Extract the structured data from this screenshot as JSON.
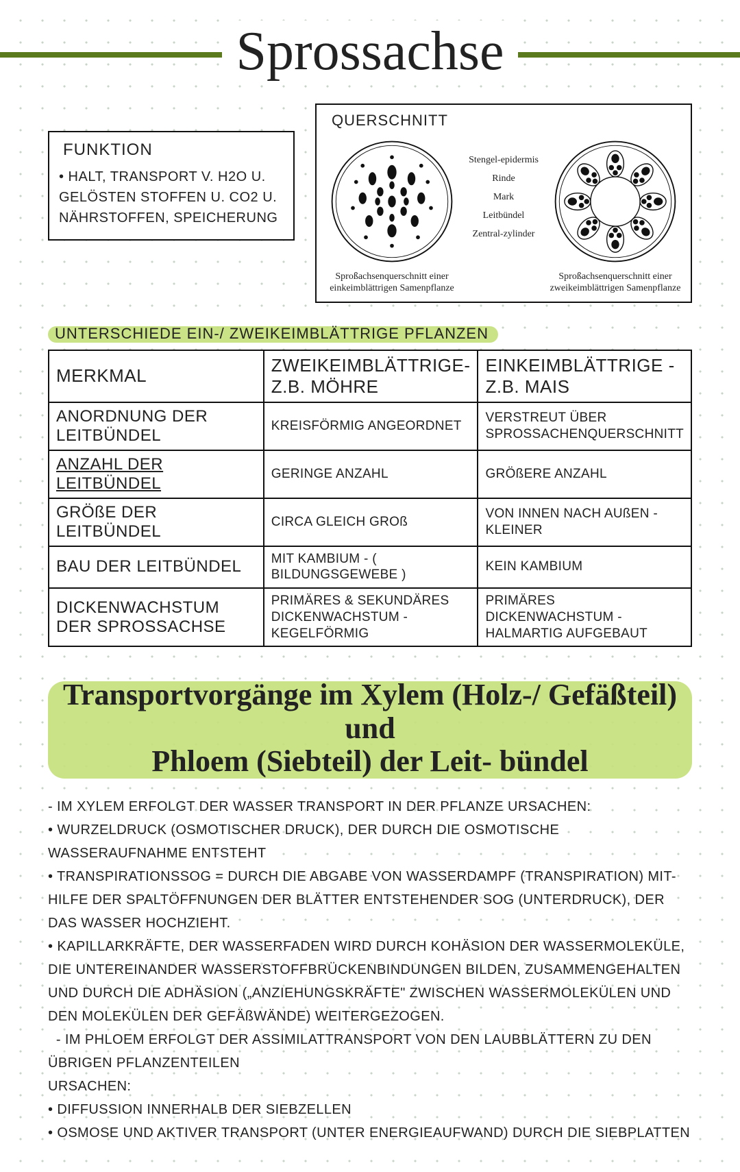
{
  "colors": {
    "accent": "#5b7a1e",
    "highlight": "#c4e07a",
    "text": "#222222",
    "border": "#111111",
    "dot": "#c8d4c8",
    "bg": "#ffffff"
  },
  "title": "Sprossachse",
  "funktion": {
    "label": "FUNKTION",
    "body": "• HALT, TRANSPORT V. H2O U. GELÖSTEN STOFFEN U. CO2 U. NÄHRSTOFFEN, SPEICHERUNG"
  },
  "querschnitt": {
    "label": "QUERSCHNITT",
    "mid_labels": [
      "Stengel-epidermis",
      "Rinde",
      "Mark",
      "Leitbündel",
      "Zentral-zylinder"
    ],
    "left_caption": "Sproßachsenquerschnitt einer einkeimblättrigen Samenpflanze",
    "right_caption": "Sproßachsenquerschnitt einer zweikeimblättrigen Samenpflanze"
  },
  "compare": {
    "heading": "UNTERSCHIEDE EIN-/ ZWEIKEIMBLÄTTRIGE PFLANZEN",
    "cols": [
      "MERKMAL",
      "ZWEIKEIMBLÄTTRIGE- Z.B. MÖHRE",
      "EINKEIMBLÄTTRIGE - Z.B. MAIS"
    ],
    "rows": [
      {
        "m": "ANORDNUNG DER LEITBÜNDEL",
        "a": "KREISFÖRMIG ANGEORDNET",
        "b": "VERSTREUT ÜBER SPROSSACHENQUERSCHNITT"
      },
      {
        "m": "ANZAHL DER LEITBÜNDEL",
        "a": "GERINGE ANZAHL",
        "b": "GRÖßERE ANZAHL",
        "ul": true
      },
      {
        "m": "GRÖßE DER LEITBÜNDEL",
        "a": "CIRCA GLEICH GROß",
        "b": "VON INNEN NACH AUßEN - KLEINER"
      },
      {
        "m": "BAU DER LEITBÜNDEL",
        "a": "MIT KAMBIUM - ( BILDUNGSGEWEBE )",
        "b": "KEIN KAMBIUM"
      },
      {
        "m": "DICKENWACHSTUM DER SPROSSACHSE",
        "a": "PRIMÄRES & SEKUNDÄRES DICKENWACHSTUM - KEGELFÖRMIG",
        "b": "PRIMÄRES DICKENWACHSTUM - HALMARTIG AUFGEBAUT"
      }
    ]
  },
  "transport": {
    "title_l1": "Transportvorgänge im Xylem (Holz-/ Gefäßteil) und",
    "title_l2": "Phloem (Siebteil) der Leit- bündel",
    "lines": [
      "- IM XYLEM ERFOLGT DER WASSER TRANSPORT IN DER PFLANZE URSACHEN:",
      "• WURZELDRUCK (OSMOTISCHER DRUCK), DER DURCH DIE OSMOTISCHE WASSERAUFNAHME ENTSTEHT",
      "• TRANSPIRATIONSSOG = DURCH DIE ABGABE VON WASSERDAMPF (TRANSPIRATION) MIT- HILFE DER SPALTÖFFNUNGEN DER BLÄTTER ENTSTEHENDER SOG (UNTERDRUCK), DER DAS WASSER HOCHZIEHT.",
      "• KAPILLARKRÄFTE, DER WASSERFADEN WIRD DURCH KOHÄSION DER WASSERMOLEKÜLE, DIE UNTEREINANDER WASSERSTOFFBRÜCKENBINDUNGEN BILDEN, ZUSAMMENGEHALTEN UND DURCH DIE ADHÄSION („ANZIEHUNGSKRÄFTE\" ZWISCHEN WASSERMOLEKÜLEN UND DEN MOLEKÜLEN DER GEFÄßWÄNDE) WEITERGEZOGEN.",
      "  - IM PHLOEM ERFOLGT DER ASSIMILATTRANSPORT VON DEN LAUBBLÄTTERN ZU DEN ÜBRIGEN PFLANZENTEILEN",
      "URSACHEN:",
      "• DIFFUSSION INNERHALB DER SIEBZELLEN",
      "• OSMOSE UND AKTIVER TRANSPORT (UNTER ENERGIEAUFWAND) DURCH DIE SIEBPLATTEN"
    ]
  }
}
